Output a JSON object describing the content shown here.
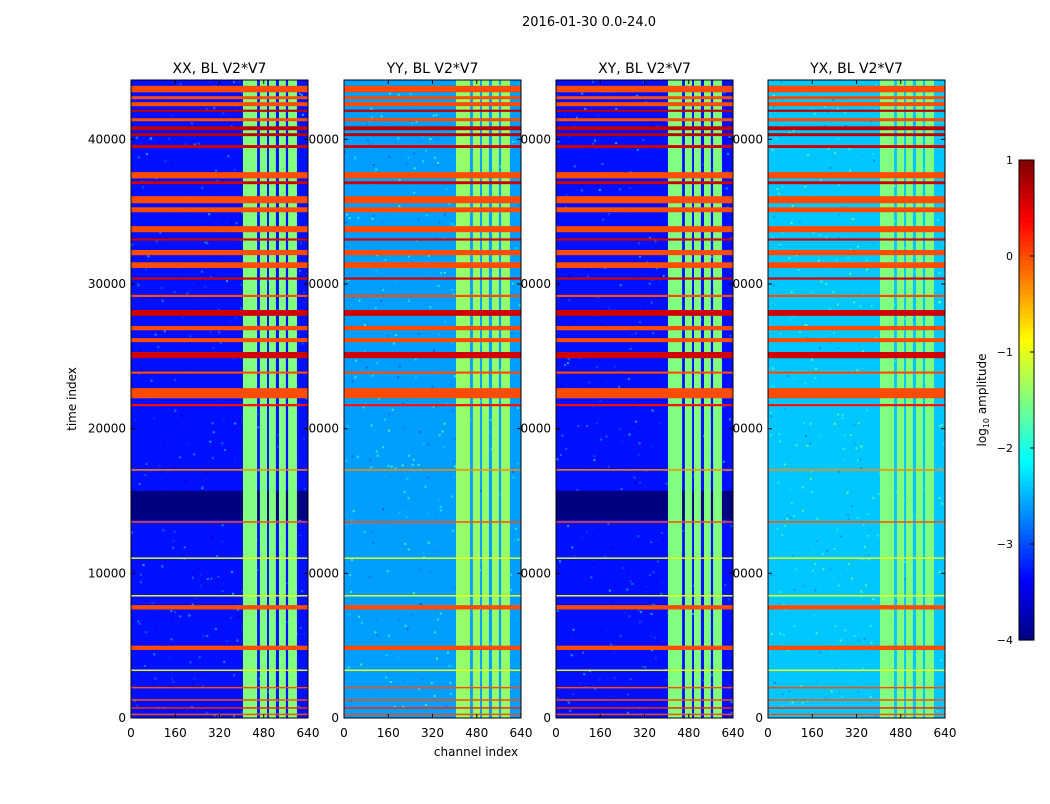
{
  "chart_data": {
    "type": "heatmap",
    "title": "2016-01-30 0.0-24.0",
    "xlabel": "channel index",
    "ylabel": "time index",
    "xlim": [
      0,
      640
    ],
    "ylim": [
      0,
      44100
    ],
    "xticks": [
      0,
      160,
      320,
      480,
      640
    ],
    "xtick_labels": [
      "0",
      "160",
      "320",
      "480",
      "640"
    ],
    "yticks": [
      0,
      10000,
      20000,
      30000,
      40000
    ],
    "ytick_labels": [
      "0",
      "10000",
      "20000",
      "30000",
      "40000"
    ],
    "colorbar": {
      "label_prefix": "log",
      "label_sub": "10",
      "label_suffix": " amplitude",
      "range": [
        -4,
        1
      ],
      "ticks": [
        1,
        0,
        -1,
        -2,
        -3,
        -4
      ],
      "tick_labels": [
        "1",
        "0",
        "−1",
        "−2",
        "−3",
        "−4"
      ],
      "colormap": "jet"
    },
    "panels": [
      {
        "title": "XX, BL V2*V7",
        "background": -3.3,
        "stripe": -1.5,
        "dark_block": true
      },
      {
        "title": "YY, BL V2*V7",
        "background": -2.6,
        "stripe": -1.4,
        "dark_block": false
      },
      {
        "title": "XY, BL V2*V7",
        "background": -3.3,
        "stripe": -1.5,
        "dark_block": true
      },
      {
        "title": "YX, BL V2*V7",
        "background": -2.4,
        "stripe": -1.5,
        "dark_block": false
      }
    ],
    "dark_block": {
      "t": [
        13700,
        15700
      ],
      "value": -4
    },
    "channel_stripes": [
      [
        405,
        456
      ],
      [
        466,
        492
      ],
      [
        499,
        524
      ],
      [
        535,
        560
      ],
      [
        568,
        600
      ]
    ],
    "time_bands": [
      [
        43250,
        43700,
        0
      ],
      [
        42770,
        42980,
        0
      ],
      [
        42290,
        42570,
        0
      ],
      [
        41900,
        42050,
        0.7
      ],
      [
        41250,
        41460,
        0
      ],
      [
        40630,
        40900,
        0.7
      ],
      [
        40220,
        40420,
        0.7
      ],
      [
        39400,
        39600,
        0.6
      ],
      [
        37300,
        37730,
        0
      ],
      [
        36900,
        37100,
        0.6
      ],
      [
        35580,
        36070,
        0
      ],
      [
        34960,
        35300,
        0
      ],
      [
        33580,
        34000,
        0
      ],
      [
        33000,
        33150,
        0.6
      ],
      [
        31990,
        32350,
        0
      ],
      [
        31100,
        31500,
        0
      ],
      [
        30300,
        30450,
        0.6
      ],
      [
        29100,
        29250,
        0
      ],
      [
        27800,
        28200,
        0.6
      ],
      [
        26800,
        27100,
        0
      ],
      [
        25980,
        26260,
        0
      ],
      [
        24870,
        25300,
        0.6
      ],
      [
        23800,
        23950,
        0
      ],
      [
        22100,
        22800,
        0
      ],
      [
        21550,
        21700,
        0.3
      ],
      [
        17100,
        17200,
        -0.3
      ],
      [
        13500,
        13600,
        0
      ],
      [
        11000,
        11100,
        -1
      ],
      [
        8400,
        8500,
        -1
      ],
      [
        7500,
        7800,
        0
      ],
      [
        4700,
        5000,
        0
      ],
      [
        3250,
        3350,
        -1
      ],
      [
        2050,
        2150,
        0
      ],
      [
        1200,
        1300,
        0
      ],
      [
        650,
        750,
        0.2
      ],
      [
        200,
        300,
        0
      ]
    ]
  }
}
